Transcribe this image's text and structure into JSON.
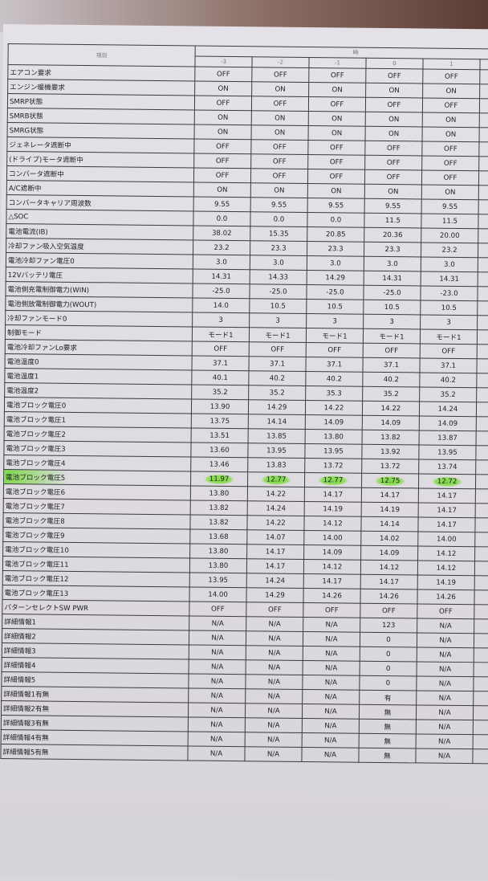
{
  "header": {
    "item_label": "項目",
    "time_label": "時",
    "columns": [
      "-3",
      "-2",
      "-1",
      "0",
      "1"
    ]
  },
  "highlight_row": "電池ブロック電圧5",
  "highlight_color": "#7fd84a",
  "rows": [
    {
      "label": "エアコン要求",
      "values": [
        "OFF",
        "OFF",
        "OFF",
        "OFF",
        "OFF"
      ]
    },
    {
      "label": "エンジン暖機要求",
      "values": [
        "ON",
        "ON",
        "ON",
        "ON",
        "ON"
      ]
    },
    {
      "label": "SMRP状態",
      "values": [
        "OFF",
        "OFF",
        "OFF",
        "OFF",
        "OFF"
      ]
    },
    {
      "label": "SMRB状態",
      "values": [
        "ON",
        "ON",
        "ON",
        "ON",
        "ON"
      ]
    },
    {
      "label": "SMRG状態",
      "values": [
        "ON",
        "ON",
        "ON",
        "ON",
        "ON"
      ]
    },
    {
      "label": "ジェネレータ遮断中",
      "values": [
        "OFF",
        "OFF",
        "OFF",
        "OFF",
        "OFF"
      ]
    },
    {
      "label": "(ドライブ)モータ遮断中",
      "values": [
        "OFF",
        "OFF",
        "OFF",
        "OFF",
        "OFF"
      ]
    },
    {
      "label": "コンバータ遮断中",
      "values": [
        "OFF",
        "OFF",
        "OFF",
        "OFF",
        "OFF"
      ]
    },
    {
      "label": "A/C遮断中",
      "values": [
        "ON",
        "ON",
        "ON",
        "ON",
        "ON"
      ]
    },
    {
      "label": "コンバータキャリア周波数",
      "values": [
        "9.55",
        "9.55",
        "9.55",
        "9.55",
        "9.55"
      ]
    },
    {
      "label": "△SOC",
      "values": [
        "0.0",
        "0.0",
        "0.0",
        "11.5",
        "11.5"
      ]
    },
    {
      "label": "電池電流(IB)",
      "values": [
        "38.02",
        "15.35",
        "20.85",
        "20.36",
        "20.00"
      ]
    },
    {
      "label": "冷却ファン吸入空気温度",
      "values": [
        "23.2",
        "23.3",
        "23.3",
        "23.3",
        "23.2"
      ]
    },
    {
      "label": "電池冷却ファン電圧0",
      "values": [
        "3.0",
        "3.0",
        "3.0",
        "3.0",
        "3.0"
      ]
    },
    {
      "label": "12Vバッテリ電圧",
      "values": [
        "14.31",
        "14.33",
        "14.29",
        "14.31",
        "14.31"
      ]
    },
    {
      "label": "電池側充電制御電力(WIN)",
      "values": [
        "-25.0",
        "-25.0",
        "-25.0",
        "-25.0",
        "-23.0"
      ]
    },
    {
      "label": "電池側放電制御電力(WOUT)",
      "values": [
        "14.0",
        "10.5",
        "10.5",
        "10.5",
        "10.5"
      ]
    },
    {
      "label": "冷却ファンモード0",
      "values": [
        "3",
        "3",
        "3",
        "3",
        "3"
      ]
    },
    {
      "label": "制御モード",
      "values": [
        "モード1",
        "モード1",
        "モード1",
        "モード1",
        "モード1"
      ]
    },
    {
      "label": "電池冷却ファンLo要求",
      "values": [
        "OFF",
        "OFF",
        "OFF",
        "OFF",
        "OFF"
      ]
    },
    {
      "label": "電池温度0",
      "values": [
        "37.1",
        "37.1",
        "37.1",
        "37.1",
        "37.1"
      ]
    },
    {
      "label": "電池温度1",
      "values": [
        "40.1",
        "40.2",
        "40.2",
        "40.2",
        "40.2"
      ]
    },
    {
      "label": "電池温度2",
      "values": [
        "35.2",
        "35.2",
        "35.3",
        "35.2",
        "35.2"
      ]
    },
    {
      "label": "電池ブロック電圧0",
      "values": [
        "13.90",
        "14.29",
        "14.22",
        "14.22",
        "14.24"
      ]
    },
    {
      "label": "電池ブロック電圧1",
      "values": [
        "13.75",
        "14.14",
        "14.09",
        "14.09",
        "14.09"
      ]
    },
    {
      "label": "電池ブロック電圧2",
      "values": [
        "13.51",
        "13.85",
        "13.80",
        "13.82",
        "13.87"
      ]
    },
    {
      "label": "電池ブロック電圧3",
      "values": [
        "13.60",
        "13.95",
        "13.95",
        "13.92",
        "13.95"
      ]
    },
    {
      "label": "電池ブロック電圧4",
      "values": [
        "13.46",
        "13.83",
        "13.72",
        "13.72",
        "13.74"
      ]
    },
    {
      "label": "電池ブロック電圧5",
      "values": [
        "11.97",
        "12.77",
        "12.77",
        "12.75",
        "12.72"
      ]
    },
    {
      "label": "電池ブロック電圧6",
      "values": [
        "13.80",
        "14.22",
        "14.17",
        "14.17",
        "14.17"
      ]
    },
    {
      "label": "電池ブロック電圧7",
      "values": [
        "13.82",
        "14.24",
        "14.19",
        "14.19",
        "14.17"
      ]
    },
    {
      "label": "電池ブロック電圧8",
      "values": [
        "13.82",
        "14.22",
        "14.12",
        "14.14",
        "14.17"
      ]
    },
    {
      "label": "電池ブロック電圧9",
      "values": [
        "13.68",
        "14.07",
        "14.00",
        "14.02",
        "14.00"
      ]
    },
    {
      "label": "電池ブロック電圧10",
      "values": [
        "13.80",
        "14.17",
        "14.09",
        "14.09",
        "14.12"
      ]
    },
    {
      "label": "電池ブロック電圧11",
      "values": [
        "13.80",
        "14.17",
        "14.12",
        "14.12",
        "14.12"
      ]
    },
    {
      "label": "電池ブロック電圧12",
      "values": [
        "13.95",
        "14.24",
        "14.17",
        "14.17",
        "14.19"
      ]
    },
    {
      "label": "電池ブロック電圧13",
      "values": [
        "14.00",
        "14.29",
        "14.26",
        "14.26",
        "14.26"
      ]
    },
    {
      "label": "パターンセレクトSW PWR",
      "values": [
        "OFF",
        "OFF",
        "OFF",
        "OFF",
        "OFF"
      ]
    },
    {
      "label": "詳細情報1",
      "values": [
        "N/A",
        "N/A",
        "N/A",
        "123",
        "N/A"
      ]
    },
    {
      "label": "詳細情報2",
      "values": [
        "N/A",
        "N/A",
        "N/A",
        "0",
        "N/A"
      ]
    },
    {
      "label": "詳細情報3",
      "values": [
        "N/A",
        "N/A",
        "N/A",
        "0",
        "N/A"
      ]
    },
    {
      "label": "詳細情報4",
      "values": [
        "N/A",
        "N/A",
        "N/A",
        "0",
        "N/A"
      ]
    },
    {
      "label": "詳細情報5",
      "values": [
        "N/A",
        "N/A",
        "N/A",
        "0",
        "N/A"
      ]
    },
    {
      "label": "詳細情報1有無",
      "values": [
        "N/A",
        "N/A",
        "N/A",
        "有",
        "N/A"
      ]
    },
    {
      "label": "詳細情報2有無",
      "values": [
        "N/A",
        "N/A",
        "N/A",
        "無",
        "N/A"
      ]
    },
    {
      "label": "詳細情報3有無",
      "values": [
        "N/A",
        "N/A",
        "N/A",
        "無",
        "N/A"
      ]
    },
    {
      "label": "詳細情報4有無",
      "values": [
        "N/A",
        "N/A",
        "N/A",
        "無",
        "N/A"
      ]
    },
    {
      "label": "詳細情報5有無",
      "values": [
        "N/A",
        "N/A",
        "N/A",
        "無",
        "N/A"
      ]
    }
  ]
}
